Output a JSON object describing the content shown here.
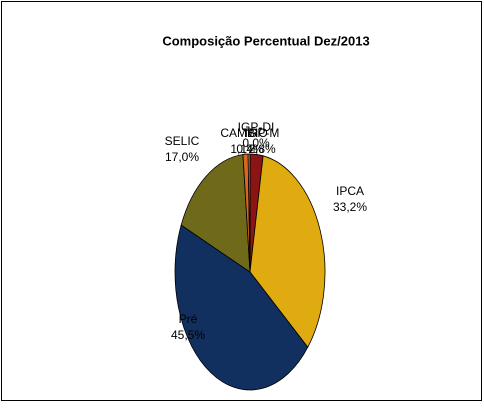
{
  "chart_data": {
    "type": "pie",
    "title": "Composição Percentual Dez/2013",
    "categories": [
      "IGP-M",
      "IPCA",
      "Pré",
      "SELIC",
      "CAMBIO",
      "TR",
      "IGP-DI"
    ],
    "values": [
      2.8,
      33.2,
      45.5,
      17.0,
      1.1,
      0.4,
      0.0
    ],
    "value_labels": [
      "2,8%",
      "33,2%",
      "45,5%",
      "17,0%",
      "1,1%",
      "0,4%",
      "0,0%"
    ],
    "colors": [
      "#8b1414",
      "#e0ab10",
      "#12305f",
      "#6f6a1a",
      "#d9661f",
      "#c9a46a",
      "#7a0000"
    ]
  }
}
